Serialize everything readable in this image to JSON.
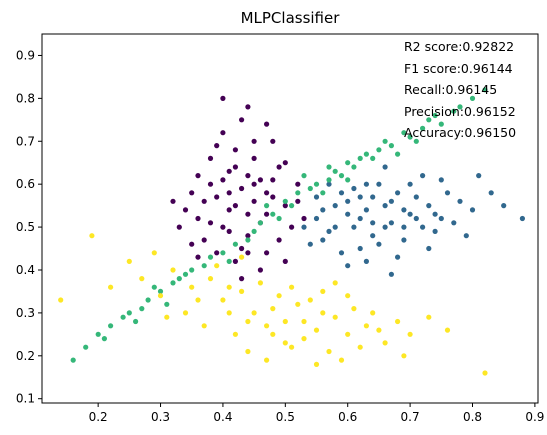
{
  "chart_data": {
    "type": "scatter",
    "title": "MLPClassifier",
    "xlabel": "",
    "ylabel": "",
    "xlim": [
      0.11,
      0.905
    ],
    "ylim": [
      0.09,
      0.95
    ],
    "xticks": [
      "0.2",
      "0.3",
      "0.4",
      "0.5",
      "0.6",
      "0.7",
      "0.8",
      "0.9"
    ],
    "yticks": [
      "0.1",
      "0.2",
      "0.3",
      "0.4",
      "0.5",
      "0.6",
      "0.7",
      "0.8",
      "0.9"
    ],
    "grid": false,
    "annotations": [
      "R2 score:0.92822",
      "F1 score:0.96144",
      "Recall:0.96145",
      "Precision:0.96152",
      "Accuracy:0.96150"
    ],
    "series": [
      {
        "color": "#440154",
        "points": [
          [
            0.44,
            0.62
          ],
          [
            0.42,
            0.55
          ],
          [
            0.47,
            0.58
          ],
          [
            0.4,
            0.5
          ],
          [
            0.45,
            0.66
          ],
          [
            0.38,
            0.6
          ],
          [
            0.5,
            0.55
          ],
          [
            0.43,
            0.45
          ],
          [
            0.36,
            0.52
          ],
          [
            0.48,
            0.7
          ],
          [
            0.41,
            0.63
          ],
          [
            0.46,
            0.51
          ],
          [
            0.39,
            0.57
          ],
          [
            0.52,
            0.6
          ],
          [
            0.44,
            0.48
          ],
          [
            0.35,
            0.58
          ],
          [
            0.49,
            0.64
          ],
          [
            0.42,
            0.68
          ],
          [
            0.37,
            0.47
          ],
          [
            0.45,
            0.56
          ],
          [
            0.4,
            0.72
          ],
          [
            0.47,
            0.44
          ],
          [
            0.43,
            0.75
          ],
          [
            0.34,
            0.54
          ],
          [
            0.51,
            0.5
          ],
          [
            0.46,
            0.61
          ],
          [
            0.38,
            0.66
          ],
          [
            0.42,
            0.42
          ],
          [
            0.48,
            0.57
          ],
          [
            0.44,
            0.53
          ],
          [
            0.36,
            0.62
          ],
          [
            0.41,
            0.49
          ],
          [
            0.5,
            0.65
          ],
          [
            0.39,
            0.44
          ],
          [
            0.45,
            0.7
          ],
          [
            0.43,
            0.59
          ],
          [
            0.37,
            0.56
          ],
          [
            0.47,
            0.53
          ],
          [
            0.33,
            0.5
          ],
          [
            0.49,
            0.47
          ],
          [
            0.4,
            0.61
          ],
          [
            0.44,
            0.78
          ],
          [
            0.46,
            0.4
          ],
          [
            0.41,
            0.54
          ],
          [
            0.38,
            0.51
          ],
          [
            0.52,
            0.56
          ],
          [
            0.42,
            0.64
          ],
          [
            0.35,
            0.46
          ],
          [
            0.48,
            0.61
          ],
          [
            0.44,
            0.44
          ],
          [
            0.39,
            0.69
          ],
          [
            0.45,
            0.6
          ],
          [
            0.4,
            0.8
          ],
          [
            0.32,
            0.56
          ],
          [
            0.5,
            0.42
          ],
          [
            0.43,
            0.38
          ],
          [
            0.47,
            0.74
          ],
          [
            0.36,
            0.43
          ],
          [
            0.41,
            0.58
          ],
          [
            0.53,
            0.52
          ]
        ]
      },
      {
        "color": "#31688e",
        "points": [
          [
            0.62,
            0.52
          ],
          [
            0.58,
            0.5
          ],
          [
            0.66,
            0.55
          ],
          [
            0.7,
            0.53
          ],
          [
            0.64,
            0.48
          ],
          [
            0.6,
            0.56
          ],
          [
            0.75,
            0.52
          ],
          [
            0.68,
            0.58
          ],
          [
            0.56,
            0.47
          ],
          [
            0.72,
            0.5
          ],
          [
            0.63,
            0.54
          ],
          [
            0.59,
            0.44
          ],
          [
            0.78,
            0.56
          ],
          [
            0.67,
            0.51
          ],
          [
            0.61,
            0.59
          ],
          [
            0.73,
            0.55
          ],
          [
            0.55,
            0.52
          ],
          [
            0.69,
            0.47
          ],
          [
            0.65,
            0.6
          ],
          [
            0.8,
            0.54
          ],
          [
            0.57,
            0.49
          ],
          [
            0.71,
            0.57
          ],
          [
            0.62,
            0.45
          ],
          [
            0.76,
            0.58
          ],
          [
            0.66,
            0.5
          ],
          [
            0.6,
            0.53
          ],
          [
            0.74,
            0.49
          ],
          [
            0.64,
            0.57
          ],
          [
            0.83,
            0.58
          ],
          [
            0.58,
            0.55
          ],
          [
            0.69,
            0.54
          ],
          [
            0.53,
            0.5
          ],
          [
            0.72,
            0.62
          ],
          [
            0.63,
            0.42
          ],
          [
            0.67,
            0.56
          ],
          [
            0.77,
            0.51
          ],
          [
            0.61,
            0.5
          ],
          [
            0.85,
            0.55
          ],
          [
            0.56,
            0.54
          ],
          [
            0.7,
            0.6
          ],
          [
            0.65,
            0.46
          ],
          [
            0.59,
            0.58
          ],
          [
            0.74,
            0.53
          ],
          [
            0.68,
            0.43
          ],
          [
            0.81,
            0.62
          ],
          [
            0.62,
            0.57
          ],
          [
            0.54,
            0.46
          ],
          [
            0.71,
            0.52
          ],
          [
            0.66,
            0.64
          ],
          [
            0.6,
            0.41
          ],
          [
            0.88,
            0.52
          ],
          [
            0.57,
            0.6
          ],
          [
            0.73,
            0.45
          ],
          [
            0.64,
            0.51
          ],
          [
            0.79,
            0.48
          ],
          [
            0.55,
            0.57
          ],
          [
            0.69,
            0.5
          ],
          [
            0.63,
            0.6
          ],
          [
            0.75,
            0.61
          ],
          [
            0.67,
            0.39
          ]
        ]
      },
      {
        "color": "#35b779",
        "points": [
          [
            0.55,
            0.6
          ],
          [
            0.6,
            0.65
          ],
          [
            0.52,
            0.58
          ],
          [
            0.65,
            0.68
          ],
          [
            0.58,
            0.63
          ],
          [
            0.7,
            0.71
          ],
          [
            0.5,
            0.56
          ],
          [
            0.62,
            0.66
          ],
          [
            0.75,
            0.74
          ],
          [
            0.57,
            0.61
          ],
          [
            0.48,
            0.53
          ],
          [
            0.67,
            0.69
          ],
          [
            0.53,
            0.62
          ],
          [
            0.72,
            0.73
          ],
          [
            0.45,
            0.49
          ],
          [
            0.61,
            0.64
          ],
          [
            0.78,
            0.78
          ],
          [
            0.42,
            0.46
          ],
          [
            0.56,
            0.58
          ],
          [
            0.69,
            0.72
          ],
          [
            0.38,
            0.43
          ],
          [
            0.63,
            0.67
          ],
          [
            0.8,
            0.8
          ],
          [
            0.35,
            0.4
          ],
          [
            0.59,
            0.62
          ],
          [
            0.33,
            0.38
          ],
          [
            0.74,
            0.76
          ],
          [
            0.3,
            0.35
          ],
          [
            0.51,
            0.55
          ],
          [
            0.66,
            0.7
          ],
          [
            0.28,
            0.33
          ],
          [
            0.46,
            0.51
          ],
          [
            0.25,
            0.3
          ],
          [
            0.64,
            0.66
          ],
          [
            0.4,
            0.44
          ],
          [
            0.22,
            0.27
          ],
          [
            0.77,
            0.77
          ],
          [
            0.32,
            0.37
          ],
          [
            0.54,
            0.59
          ],
          [
            0.2,
            0.25
          ],
          [
            0.68,
            0.67
          ],
          [
            0.37,
            0.41
          ],
          [
            0.27,
            0.31
          ],
          [
            0.44,
            0.47
          ],
          [
            0.18,
            0.22
          ],
          [
            0.6,
            0.61
          ],
          [
            0.29,
            0.36
          ],
          [
            0.49,
            0.52
          ],
          [
            0.24,
            0.29
          ],
          [
            0.71,
            0.7
          ],
          [
            0.34,
            0.39
          ],
          [
            0.16,
            0.19
          ],
          [
            0.57,
            0.64
          ],
          [
            0.41,
            0.42
          ],
          [
            0.26,
            0.28
          ],
          [
            0.73,
            0.75
          ],
          [
            0.31,
            0.32
          ],
          [
            0.47,
            0.55
          ],
          [
            0.21,
            0.24
          ],
          [
            0.82,
            0.82
          ]
        ]
      },
      {
        "color": "#fde725",
        "points": [
          [
            0.5,
            0.28
          ],
          [
            0.55,
            0.26
          ],
          [
            0.45,
            0.3
          ],
          [
            0.6,
            0.25
          ],
          [
            0.52,
            0.32
          ],
          [
            0.4,
            0.33
          ],
          [
            0.58,
            0.29
          ],
          [
            0.47,
            0.27
          ],
          [
            0.63,
            0.27
          ],
          [
            0.53,
            0.24
          ],
          [
            0.43,
            0.35
          ],
          [
            0.48,
            0.31
          ],
          [
            0.66,
            0.23
          ],
          [
            0.56,
            0.3
          ],
          [
            0.38,
            0.38
          ],
          [
            0.51,
            0.22
          ],
          [
            0.61,
            0.31
          ],
          [
            0.44,
            0.28
          ],
          [
            0.35,
            0.36
          ],
          [
            0.57,
            0.21
          ],
          [
            0.49,
            0.34
          ],
          [
            0.68,
            0.28
          ],
          [
            0.42,
            0.25
          ],
          [
            0.54,
            0.33
          ],
          [
            0.32,
            0.4
          ],
          [
            0.59,
            0.19
          ],
          [
            0.46,
            0.37
          ],
          [
            0.7,
            0.25
          ],
          [
            0.41,
            0.3
          ],
          [
            0.64,
            0.3
          ],
          [
            0.3,
            0.34
          ],
          [
            0.53,
            0.28
          ],
          [
            0.37,
            0.27
          ],
          [
            0.62,
            0.22
          ],
          [
            0.48,
            0.25
          ],
          [
            0.27,
            0.38
          ],
          [
            0.56,
            0.35
          ],
          [
            0.44,
            0.21
          ],
          [
            0.73,
            0.29
          ],
          [
            0.39,
            0.41
          ],
          [
            0.25,
            0.42
          ],
          [
            0.51,
            0.36
          ],
          [
            0.6,
            0.34
          ],
          [
            0.34,
            0.3
          ],
          [
            0.47,
            0.19
          ],
          [
            0.22,
            0.36
          ],
          [
            0.65,
            0.26
          ],
          [
            0.41,
            0.36
          ],
          [
            0.55,
            0.18
          ],
          [
            0.29,
            0.44
          ],
          [
            0.76,
            0.26
          ],
          [
            0.36,
            0.33
          ],
          [
            0.5,
            0.23
          ],
          [
            0.19,
            0.48
          ],
          [
            0.58,
            0.37
          ],
          [
            0.43,
            0.43
          ],
          [
            0.69,
            0.2
          ],
          [
            0.31,
            0.29
          ],
          [
            0.82,
            0.16
          ],
          [
            0.14,
            0.33
          ]
        ]
      }
    ]
  }
}
